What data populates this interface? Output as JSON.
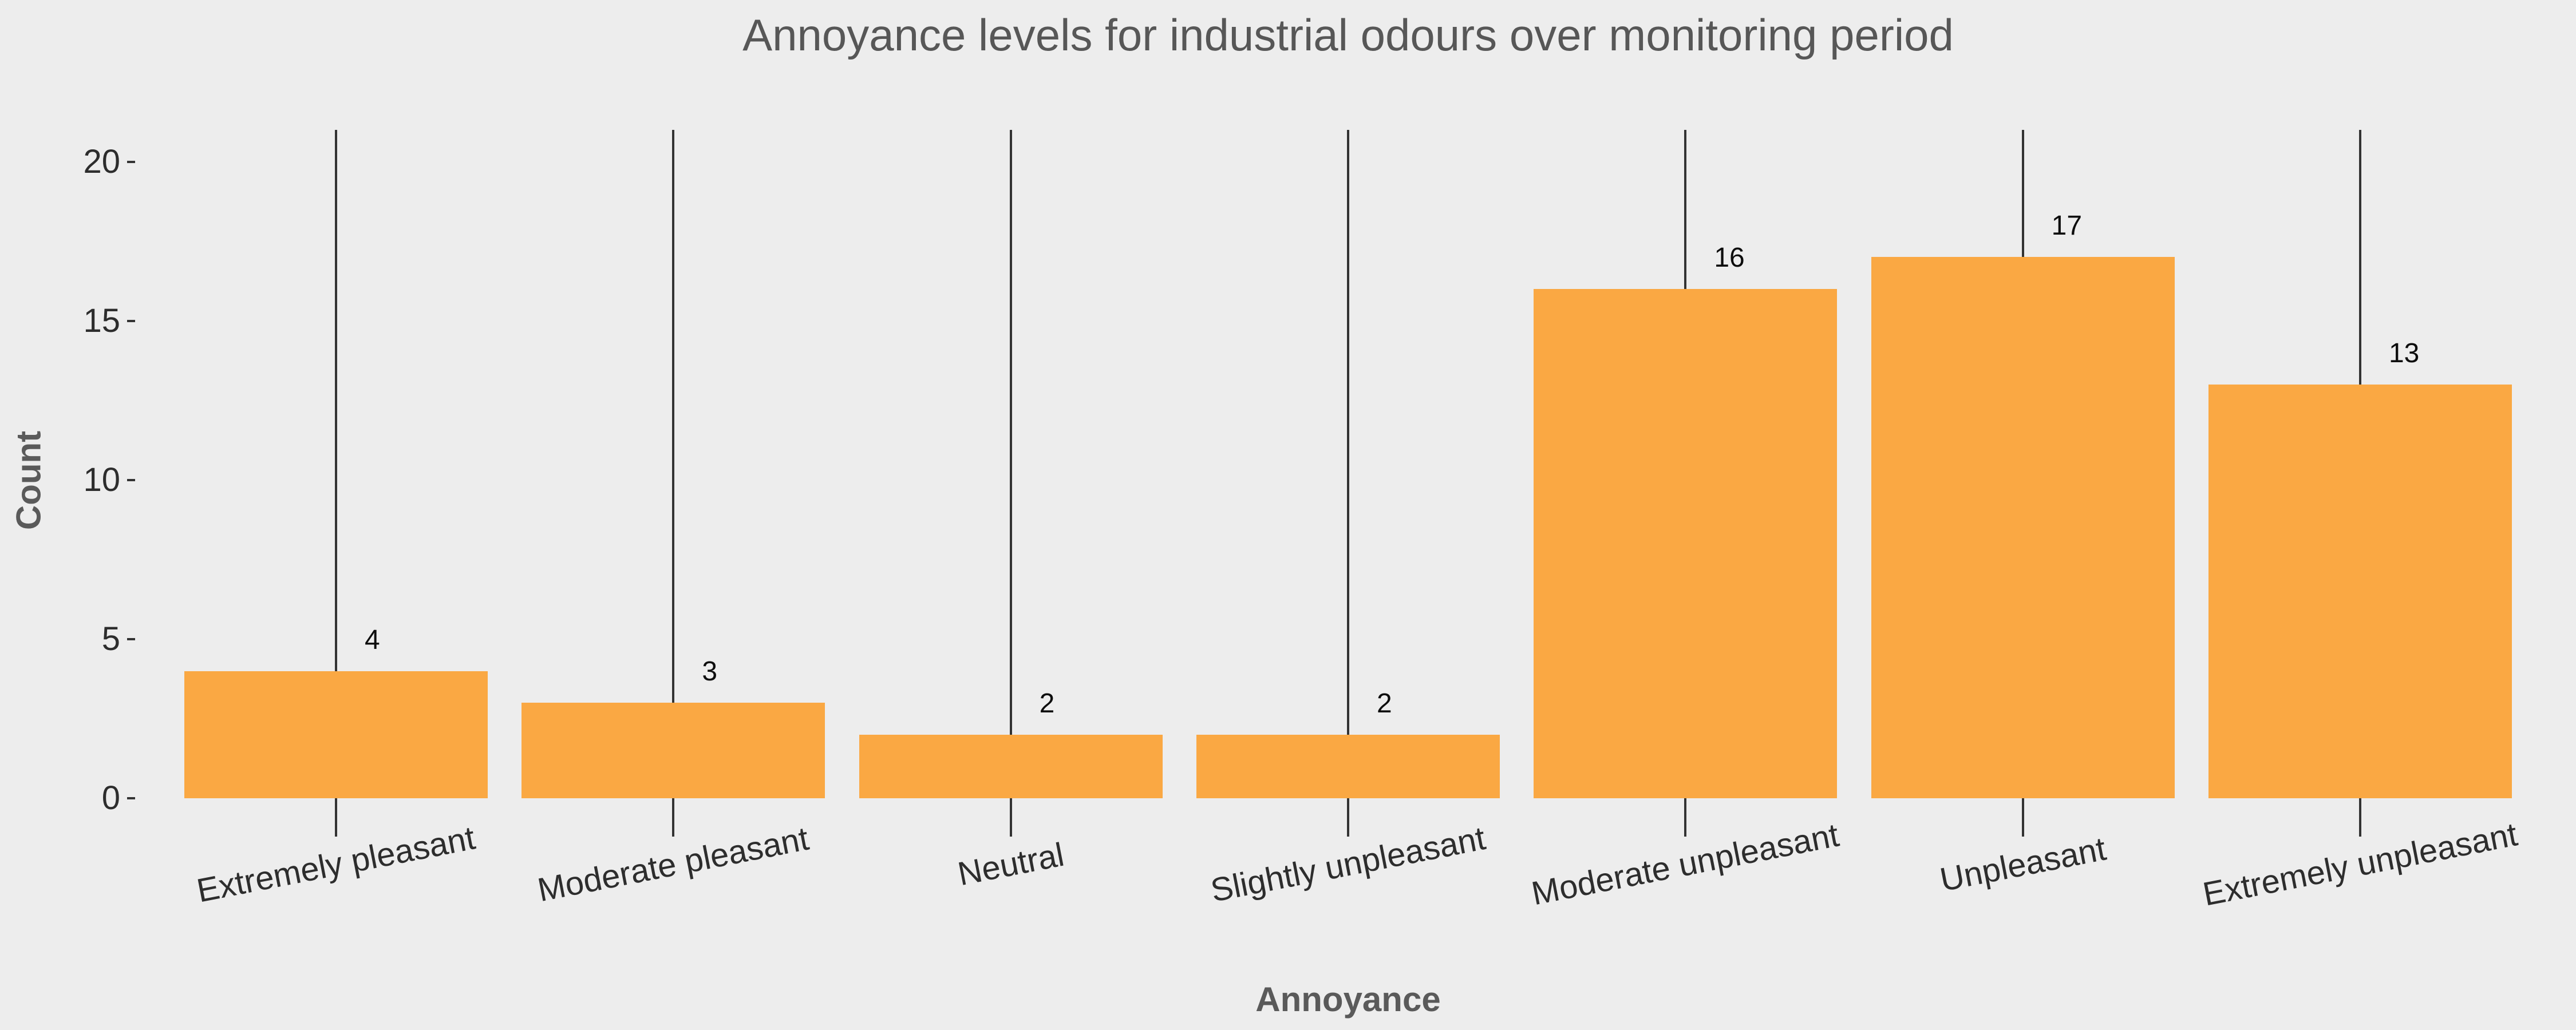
{
  "chart_data": {
    "type": "bar",
    "title": "Annoyance levels for industrial odours over monitoring period",
    "xlabel": "Annoyance",
    "ylabel": "Count",
    "categories": [
      "Extremely pleasant",
      "Moderate pleasant",
      "Neutral",
      "Slightly unpleasant",
      "Moderate unpleasant",
      "Unpleasant",
      "Extremely unpleasant"
    ],
    "values": [
      4,
      3,
      2,
      2,
      16,
      17,
      13
    ],
    "value_labels": [
      "4",
      "3",
      "2",
      "2",
      "16",
      "17",
      "13"
    ],
    "ytick_labels": [
      "0",
      "5",
      "10",
      "15",
      "20"
    ],
    "yticks": [
      0,
      5,
      10,
      15,
      20
    ],
    "ylim": [
      0,
      21
    ],
    "category_line_max": 21,
    "grid": false,
    "legend": "none",
    "x_tick_rotation_deg": -11,
    "bar_color": "#FAA843",
    "line_color": "#333333",
    "background_color": "#EDEDED",
    "title_color": "#575757",
    "axis_title_color": "#5a5a5a",
    "tick_label_color": "#2d2d2d",
    "value_label_color": "#0d0d0d"
  }
}
